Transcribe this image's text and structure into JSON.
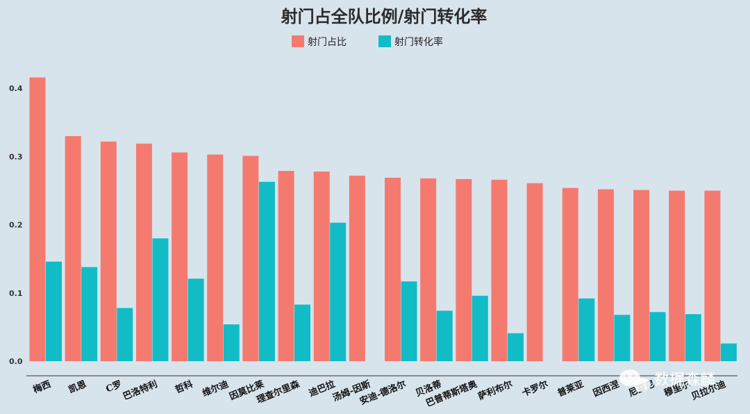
{
  "chart_data": {
    "type": "bar",
    "title": "射门占全队比例/射门转化率",
    "categories": [
      "梅西",
      "凯恩",
      "C罗",
      "巴洛特利",
      "哲科",
      "维尔迪",
      "因莫比莱",
      "理查尔里森",
      "迪巴拉",
      "汤姆-因斯",
      "安迪-德洛尔",
      "贝洛蒂",
      "巴普蒂斯塔奥",
      "萨利布尔",
      "卡罗尔",
      "普莱亚",
      "因西涅",
      "尼亚尼",
      "穆里尔",
      "贝拉尔迪"
    ],
    "series": [
      {
        "name": "射门占比",
        "color": "#f47a70",
        "values": [
          0.416,
          0.33,
          0.322,
          0.319,
          0.306,
          0.303,
          0.301,
          0.279,
          0.278,
          0.272,
          0.269,
          0.268,
          0.267,
          0.266,
          0.261,
          0.254,
          0.252,
          0.251,
          0.25,
          0.25
        ]
      },
      {
        "name": "射门转化率",
        "color": "#12bcc6",
        "values": [
          0.146,
          0.138,
          0.078,
          0.18,
          0.121,
          0.054,
          0.263,
          0.083,
          0.203,
          null,
          0.117,
          0.074,
          0.096,
          0.041,
          null,
          0.092,
          0.068,
          0.072,
          0.069,
          0.026
        ]
      }
    ],
    "yticks": [
      "0.0",
      "0.1",
      "0.2",
      "0.3",
      "0.4"
    ],
    "ylim": [
      0,
      0.45
    ],
    "legend": "top-center",
    "grid": false
  },
  "watermark": "数据森麟"
}
